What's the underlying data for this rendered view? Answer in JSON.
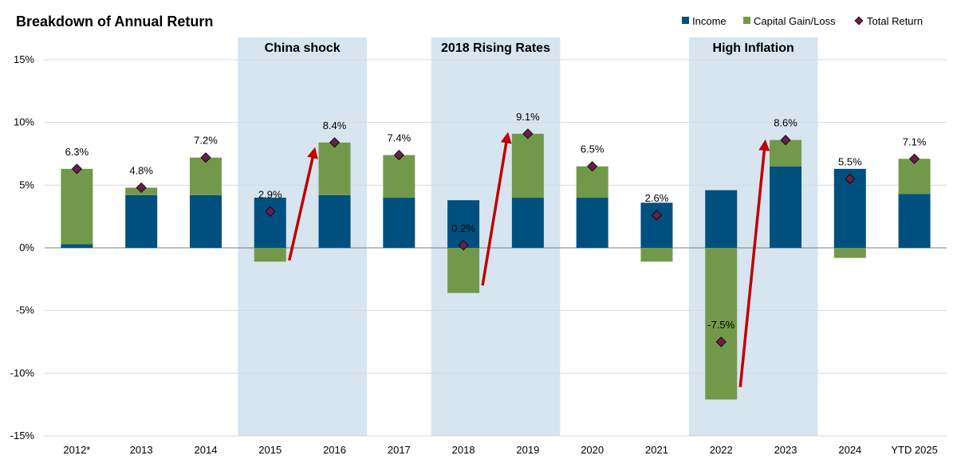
{
  "chart_data": {
    "type": "bar",
    "stacked": true,
    "title": "Breakdown of Annual Return",
    "categories": [
      "2012*",
      "2013",
      "2014",
      "2015",
      "2016",
      "2017",
      "2018",
      "2019",
      "2020",
      "2021",
      "2022",
      "2023",
      "2024",
      "YTD 2025"
    ],
    "series": [
      {
        "name": "Income",
        "type": "bar",
        "color": "#00507f",
        "values": [
          0.3,
          4.2,
          4.2,
          4.0,
          4.2,
          4.0,
          3.8,
          4.0,
          4.0,
          3.6,
          4.6,
          6.5,
          6.3,
          4.3
        ]
      },
      {
        "name": "Capital Gain/Loss",
        "type": "bar",
        "color": "#72994a",
        "values": [
          6.0,
          0.6,
          3.0,
          -1.1,
          4.2,
          3.4,
          -3.6,
          5.1,
          2.5,
          -1.1,
          -12.1,
          2.1,
          -0.8,
          2.8
        ]
      },
      {
        "name": "Total Return",
        "type": "scatter",
        "color": "#6b1e4a",
        "values": [
          6.3,
          4.8,
          7.2,
          2.9,
          8.4,
          7.4,
          0.2,
          9.1,
          6.5,
          2.6,
          -7.5,
          8.6,
          5.5,
          7.1
        ],
        "labels": [
          "6.3%",
          "4.8%",
          "7.2%",
          "2.9%",
          "8.4%",
          "7.4%",
          "0.2%",
          "9.1%",
          "6.5%",
          "2.6%",
          "-7.5%",
          "8.6%",
          "5.5%",
          "7.1%"
        ]
      }
    ],
    "ylim": [
      -15,
      15
    ],
    "yticks": [
      15,
      10,
      5,
      0,
      -5,
      -10,
      -15
    ],
    "ytick_labels": [
      "15%",
      "10%",
      "5%",
      "0%",
      "-5%",
      "-10%",
      "-15%"
    ],
    "grid": true,
    "legend": "top-right",
    "highlight_bands": [
      {
        "label": "China shock",
        "from": "2015",
        "to": "2016"
      },
      {
        "label": "2018 Rising Rates",
        "from": "2018",
        "to": "2019"
      },
      {
        "label": "High Inflation",
        "from": "2022",
        "to": "2023"
      }
    ],
    "arrows": [
      {
        "from": {
          "x": "2015",
          "y": -1.0
        },
        "to": {
          "x": "2016",
          "y": 7.6
        }
      },
      {
        "from": {
          "x": "2018",
          "y": -3.0
        },
        "to": {
          "x": "2019",
          "y": 8.8
        }
      },
      {
        "from": {
          "x": "2022",
          "y": -11.1
        },
        "to": {
          "x": "2023",
          "y": 8.2
        }
      }
    ],
    "band_color": "#d6e5f0",
    "arrow_color": "#c00000",
    "grid_color": "#d9d9d9"
  }
}
